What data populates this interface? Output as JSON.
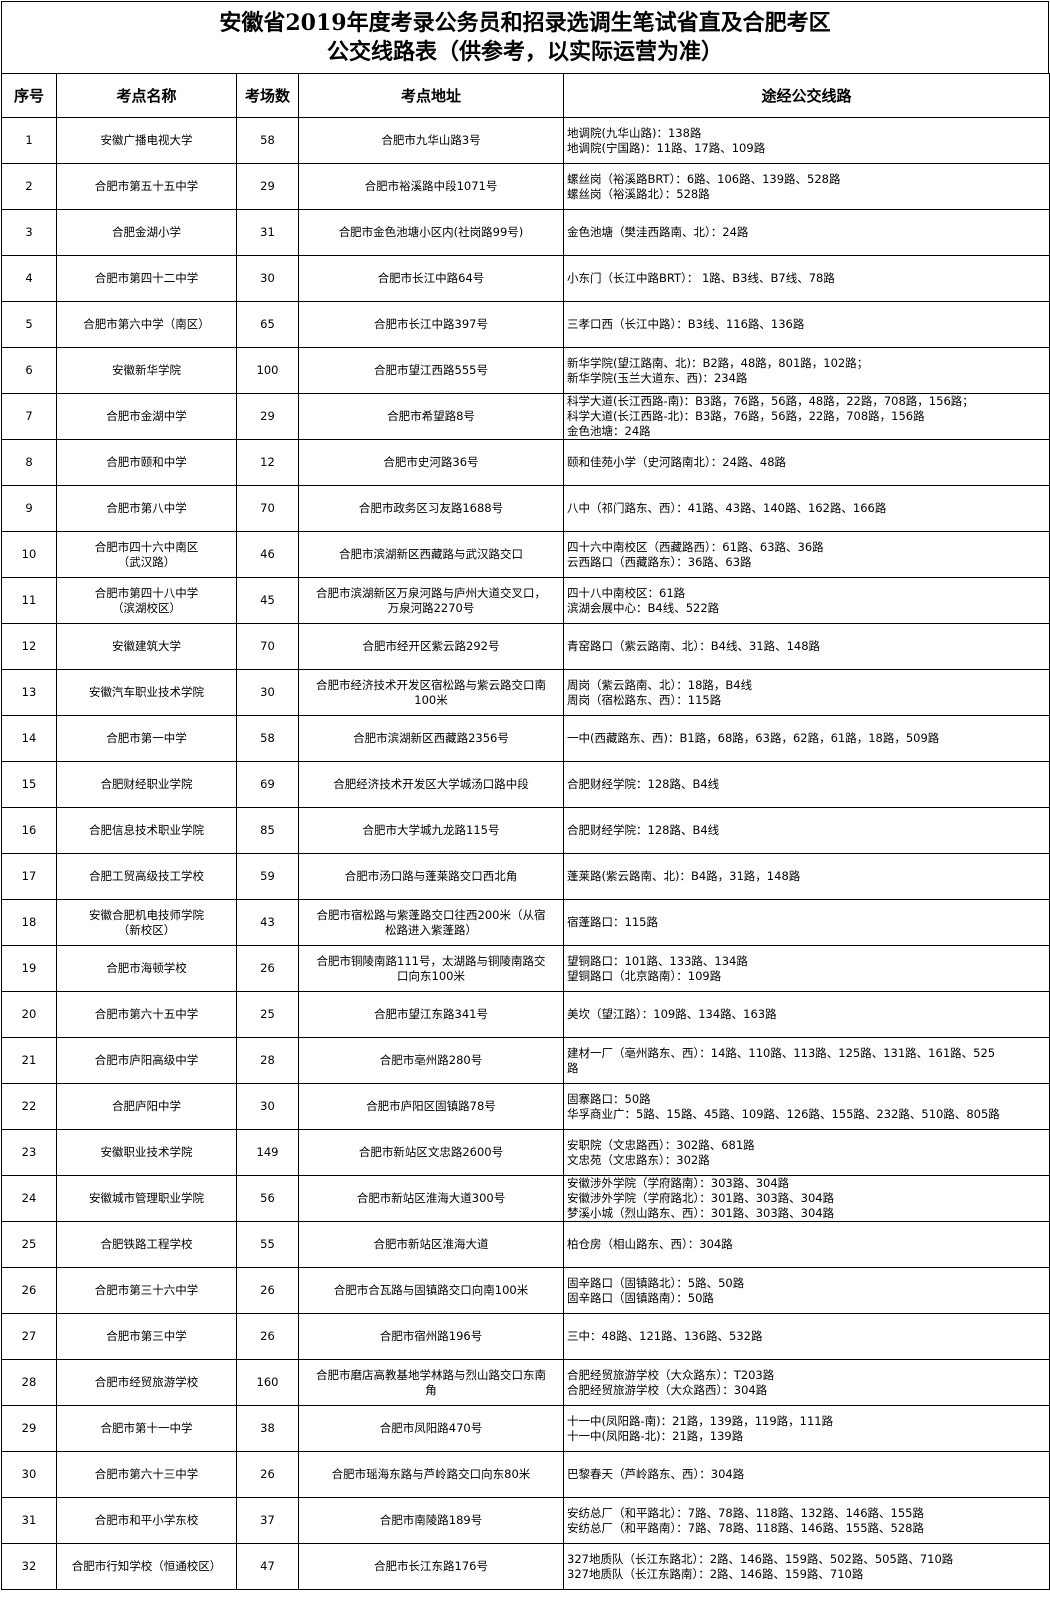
{
  "title": {
    "line1": "安徽省2019年度考录公务员和招录选调生笔试省直及合肥考区",
    "line2": "公交线路表（供参考，以实际运营为准）"
  },
  "headers": [
    "序号",
    "考点名称",
    "考场数",
    "考点地址",
    "途经公交线路"
  ],
  "rows": [
    {
      "no": "1",
      "name": [
        "安徽广播电视大学"
      ],
      "rooms": "58",
      "address": [
        "合肥市九华山路3号"
      ],
      "routes": [
        "地调院(九华山路)：138路",
        "地调院(宁国路)：11路、17路、109路"
      ]
    },
    {
      "no": "2",
      "name": [
        "合肥市第五十五中学"
      ],
      "rooms": "29",
      "address": [
        "合肥市裕溪路中段1071号"
      ],
      "routes": [
        "螺丝岗（裕溪路BRT）：6路、106路、139路、528路",
        "螺丝岗（裕溪路北）：528路"
      ]
    },
    {
      "no": "3",
      "name": [
        "合肥金湖小学"
      ],
      "rooms": "31",
      "address": [
        "合肥市金色池塘小区内(社岗路99号)"
      ],
      "routes": [
        "金色池塘（樊洼西路南、北）：24路"
      ]
    },
    {
      "no": "4",
      "name": [
        "合肥市第四十二中学"
      ],
      "rooms": "30",
      "address": [
        "合肥市长江中路64号"
      ],
      "routes": [
        "小东门（长江中路BRT）：  1路、B3线、B7线、78路"
      ]
    },
    {
      "no": "5",
      "name": [
        "合肥市第六中学（南区）"
      ],
      "rooms": "65",
      "address": [
        "合肥市长江中路397号"
      ],
      "routes": [
        "三孝口西（长江中路）：B3线、116路、136路"
      ]
    },
    {
      "no": "6",
      "name": [
        "安徽新华学院"
      ],
      "rooms": "100",
      "address": [
        "合肥市望江西路555号"
      ],
      "routes": [
        "新华学院(望江路南、北)：B2路，48路，801路，102路；",
        "新华学院(玉兰大道东、西)：234路"
      ]
    },
    {
      "no": "7",
      "name": [
        "合肥市金湖中学"
      ],
      "rooms": "29",
      "address": [
        "合肥市希望路8号"
      ],
      "routes": [
        "科学大道(长江西路-南)：B3路，76路，56路，48路，22路，708路，156路；",
        "科学大道(长江西路-北)：B3路，76路，56路，22路，708路，156路",
        "金色池塘：24路"
      ]
    },
    {
      "no": "8",
      "name": [
        "合肥市颐和中学"
      ],
      "rooms": "12",
      "address": [
        "合肥市史河路36号"
      ],
      "routes": [
        "颐和佳苑小学（史河路南北）：24路、48路"
      ]
    },
    {
      "no": "9",
      "name": [
        "合肥市第八中学"
      ],
      "rooms": "70",
      "address": [
        "合肥市政务区习友路1688号"
      ],
      "routes": [
        "八中（祁门路东、西）：41路、43路、140路、162路、166路"
      ]
    },
    {
      "no": "10",
      "name": [
        "合肥市四十六中南区",
        "（武汉路）"
      ],
      "rooms": "46",
      "address": [
        "合肥市滨湖新区西藏路与武汉路交口"
      ],
      "routes": [
        "四十六中南校区（西藏路西）：61路、63路、36路",
        "云西路口（西藏路东）：36路、63路"
      ]
    },
    {
      "no": "11",
      "name": [
        "合肥市第四十八中学",
        "（滨湖校区）"
      ],
      "rooms": "45",
      "address": [
        "合肥市滨湖新区万泉河路与庐州大道交叉口，",
        "万泉河路2270号"
      ],
      "routes": [
        "四十八中南校区：61路",
        "滨湖会展中心：B4线、522路"
      ]
    },
    {
      "no": "12",
      "name": [
        "安徽建筑大学"
      ],
      "rooms": "70",
      "address": [
        "合肥市经开区紫云路292号"
      ],
      "routes": [
        "青窑路口（紫云路南、北）：B4线、31路、148路"
      ]
    },
    {
      "no": "13",
      "name": [
        "安徽汽车职业技术学院"
      ],
      "rooms": "30",
      "address": [
        "合肥市经济技术开发区宿松路与紫云路交口南",
        "100米"
      ],
      "routes": [
        "周岗（紫云路南、北）：18路，B4线",
        "周岗（宿松路东、西）：115路"
      ]
    },
    {
      "no": "14",
      "name": [
        "合肥市第一中学"
      ],
      "rooms": "58",
      "address": [
        "合肥市滨湖新区西藏路2356号"
      ],
      "routes": [
        "一中(西藏路东、西)：B1路，68路，63路，62路，61路，18路，509路"
      ]
    },
    {
      "no": "15",
      "name": [
        "合肥财经职业学院"
      ],
      "rooms": "69",
      "address": [
        "合肥经济技术开发区大学城汤口路中段"
      ],
      "routes": [
        "合肥财经学院：128路、B4线"
      ]
    },
    {
      "no": "16",
      "name": [
        "合肥信息技术职业学院"
      ],
      "rooms": "85",
      "address": [
        "合肥市大学城九龙路115号"
      ],
      "routes": [
        "合肥财经学院：128路、B4线"
      ]
    },
    {
      "no": "17",
      "name": [
        "合肥工贸高级技工学校"
      ],
      "rooms": "59",
      "address": [
        "合肥市汤口路与蓬莱路交口西北角"
      ],
      "routes": [
        "蓬莱路(紫云路南、北)：B4路，31路，148路"
      ]
    },
    {
      "no": "18",
      "name": [
        "安徽合肥机电技师学院",
        "（新校区）"
      ],
      "rooms": "43",
      "address": [
        "合肥市宿松路与紫蓬路交口往西200米（从宿",
        "松路进入紫蓬路）"
      ],
      "routes": [
        "宿蓬路口：115路"
      ]
    },
    {
      "no": "19",
      "name": [
        "合肥市海顿学校"
      ],
      "rooms": "26",
      "address": [
        "合肥市铜陵南路111号，太湖路与铜陵南路交",
        "口向东100米"
      ],
      "routes": [
        "望铜路口：101路、133路、134路",
        "望铜路口（北京路南）：109路"
      ]
    },
    {
      "no": "20",
      "name": [
        "合肥市第六十五中学"
      ],
      "rooms": "25",
      "address": [
        "合肥市望江东路341号"
      ],
      "routes": [
        "美坎（望江路）：109路、134路、163路"
      ]
    },
    {
      "no": "21",
      "name": [
        "合肥市庐阳高级中学"
      ],
      "rooms": "28",
      "address": [
        "合肥市亳州路280号"
      ],
      "routes": [
        "建材一厂（亳州路东、西）：14路、110路、113路、125路、131路、161路、525",
        "路"
      ]
    },
    {
      "no": "22",
      "name": [
        "合肥庐阳中学"
      ],
      "rooms": "30",
      "address": [
        "合肥市庐阳区固镇路78号"
      ],
      "routes": [
        "固寨路口：50路",
        "华孚商业广：5路、15路、45路、109路、126路、155路、232路、510路、805路"
      ]
    },
    {
      "no": "23",
      "name": [
        "安徽职业技术学院"
      ],
      "rooms": "149",
      "address": [
        "合肥市新站区文忠路2600号"
      ],
      "routes": [
        "安职院（文忠路西）：302路、681路",
        "文忠苑（文忠路东）：302路"
      ]
    },
    {
      "no": "24",
      "name": [
        "安徽城市管理职业学院"
      ],
      "rooms": "56",
      "address": [
        "合肥市新站区淮海大道300号"
      ],
      "routes": [
        "安徽涉外学院（学府路南）：303路、304路",
        "安徽涉外学院（学府路北）：301路、303路、304路",
        "梦溪小城（烈山路东、西）：301路、303路、304路"
      ]
    },
    {
      "no": "25",
      "name": [
        "合肥铁路工程学校"
      ],
      "rooms": "55",
      "address": [
        "合肥市新站区淮海大道"
      ],
      "routes": [
        "柏仓房（相山路东、西）：304路"
      ]
    },
    {
      "no": "26",
      "name": [
        "合肥市第三十六中学"
      ],
      "rooms": "26",
      "address": [
        "合肥市合瓦路与固镇路交口向南100米"
      ],
      "routes": [
        "固辛路口（固镇路北）：5路、50路",
        "固辛路口（固镇路南）：50路"
      ]
    },
    {
      "no": "27",
      "name": [
        "合肥市第三中学"
      ],
      "rooms": "26",
      "address": [
        "合肥市宿州路196号"
      ],
      "routes": [
        "三中：48路、121路、136路、532路"
      ]
    },
    {
      "no": "28",
      "name": [
        "合肥市经贸旅游学校"
      ],
      "rooms": "160",
      "address": [
        "合肥市磨店高教基地学林路与烈山路交口东南",
        "角"
      ],
      "routes": [
        "合肥经贸旅游学校（大众路东）：T203路",
        "合肥经贸旅游学校（大众路西）：304路"
      ]
    },
    {
      "no": "29",
      "name": [
        "合肥市第十一中学"
      ],
      "rooms": "38",
      "address": [
        "合肥市凤阳路470号"
      ],
      "routes": [
        "十一中(凤阳路-南)：21路，139路，119路，111路",
        "十一中(凤阳路-北)：21路，139路"
      ]
    },
    {
      "no": "30",
      "name": [
        "合肥市第六十三中学"
      ],
      "rooms": "26",
      "address": [
        "合肥市瑶海东路与芦岭路交口向东80米"
      ],
      "routes": [
        "巴黎春天（芦岭路东、西）：304路"
      ]
    },
    {
      "no": "31",
      "name": [
        "合肥市和平小学东校"
      ],
      "rooms": "37",
      "address": [
        "合肥市南陵路189号"
      ],
      "routes": [
        "安纺总厂（和平路北）：7路、78路、118路、132路、146路、155路",
        "安纺总厂（和平路南）：7路、78路、118路、146路、155路、528路"
      ]
    },
    {
      "no": "32",
      "name": [
        "合肥市行知学校（恒通校区）"
      ],
      "rooms": "47",
      "address": [
        "合肥市长江东路176号"
      ],
      "routes": [
        "327地质队（长江东路北）：2路、146路、159路、502路、505路、710路",
        "327地质队（长江东路南）：2路、146路、159路、710路"
      ]
    }
  ]
}
